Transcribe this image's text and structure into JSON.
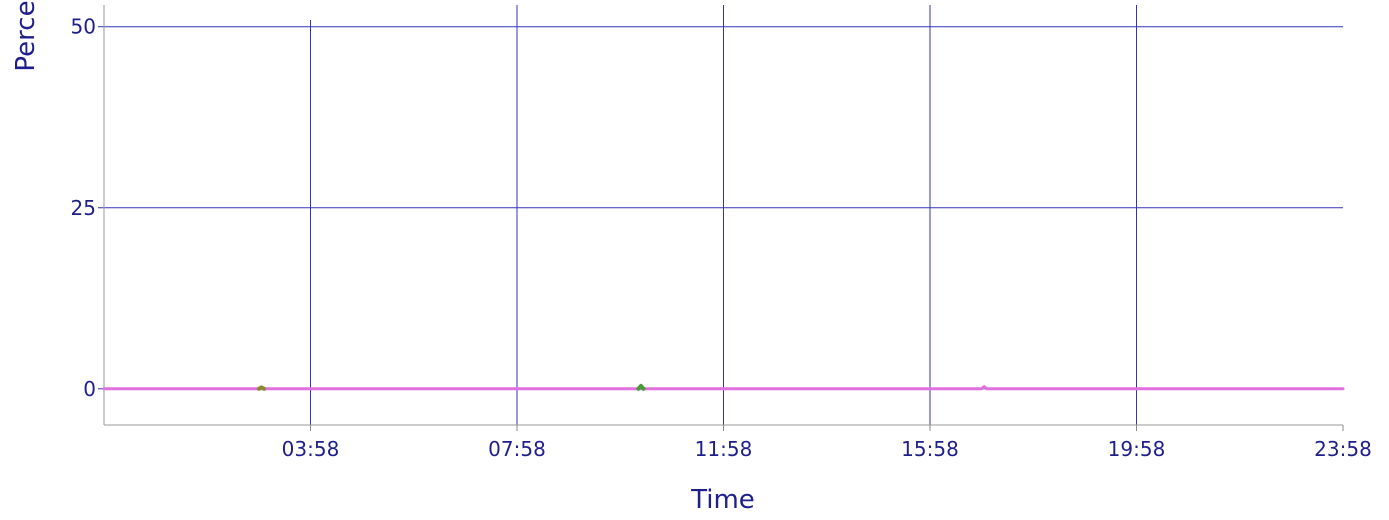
{
  "chart_data": {
    "type": "line",
    "title": "",
    "xlabel": "Time",
    "ylabel": "Perce",
    "x_ticks": [
      "03:58",
      "07:58",
      "11:58",
      "15:58",
      "19:58",
      "23:58"
    ],
    "y_ticks": [
      "0",
      "25",
      "50"
    ],
    "ylim": [
      -5,
      53
    ],
    "xlim_hours": [
      0.0,
      24.0
    ],
    "grid": true,
    "colors": {
      "grid": "#3333bb",
      "axis_text": "#1e1e8c",
      "series_main": "#e070e0",
      "series_green": "#4a9a3a",
      "series_olive": "#8a8a30"
    },
    "series": [
      {
        "color": "#e070e0",
        "points": [
          [
            0.0,
            0.0
          ],
          [
            3.0,
            0.0
          ],
          [
            10.0,
            0.0
          ],
          [
            16.0,
            0.0
          ],
          [
            17.0,
            0.0
          ],
          [
            17.05,
            0.3
          ],
          [
            17.1,
            0.0
          ],
          [
            24.0,
            0.0
          ]
        ]
      },
      {
        "color": "#4a9a3a",
        "points": [
          [
            10.35,
            0.0
          ],
          [
            10.4,
            0.4
          ],
          [
            10.45,
            0.0
          ]
        ]
      },
      {
        "color": "#8a8a30",
        "points": [
          [
            3.0,
            0.0
          ],
          [
            3.05,
            0.2
          ],
          [
            3.1,
            0.0
          ]
        ]
      }
    ]
  }
}
